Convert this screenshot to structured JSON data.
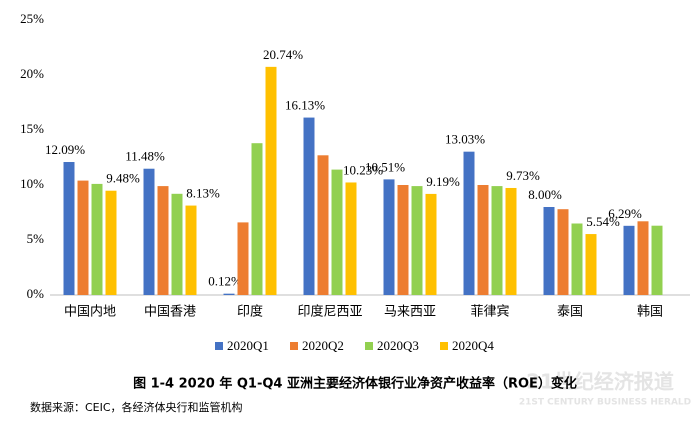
{
  "chart_data": {
    "type": "bar",
    "title": "图 1-4 2020 年 Q1-Q4 亚洲主要经济体银行业净资产收益率（ROE）变化",
    "source": "数据来源：CEIC，各经济体央行和监管机构",
    "categories": [
      "中国内地",
      "中国香港",
      "印度",
      "印度尼西亚",
      "马来西亚",
      "菲律宾",
      "泰国",
      "韩国"
    ],
    "series": [
      {
        "name": "2020Q1",
        "color": "#4472c4",
        "values": [
          12.09,
          11.48,
          0.12,
          16.13,
          10.51,
          13.03,
          8.0,
          6.29
        ],
        "value_labels": [
          "12.09%",
          "11.48%",
          "0.12%",
          "16.13%",
          "10.51%",
          "13.03%",
          "8.00%",
          "6.29%"
        ]
      },
      {
        "name": "2020Q2",
        "color": "#ed7d31",
        "values": [
          10.4,
          9.9,
          6.6,
          12.7,
          10.0,
          10.0,
          7.8,
          6.7
        ]
      },
      {
        "name": "2020Q3",
        "color": "#92d050",
        "values": [
          10.1,
          9.2,
          13.8,
          11.4,
          9.9,
          9.9,
          6.5,
          6.3
        ]
      },
      {
        "name": "2020Q4",
        "color": "#ffc000",
        "values": [
          9.48,
          8.13,
          20.74,
          10.23,
          9.19,
          9.73,
          5.54,
          null
        ],
        "value_labels": [
          "9.48%",
          "8.13%",
          "20.74%",
          "10.23%",
          "9.19%",
          "9.73%",
          "5.54%",
          null
        ]
      }
    ],
    "ylim": [
      0,
      25
    ],
    "yticks": [
      {
        "value": 0,
        "label": "0%"
      },
      {
        "value": 5,
        "label": "5%"
      },
      {
        "value": 10,
        "label": "10%"
      },
      {
        "value": 15,
        "label": "15%"
      },
      {
        "value": 20,
        "label": "20%"
      },
      {
        "value": 25,
        "label": "25%"
      }
    ],
    "grid": false
  },
  "watermark": {
    "title": "21世纪经济报道",
    "subtitle": "21ST CENTURY BUSINESS HERALD"
  }
}
